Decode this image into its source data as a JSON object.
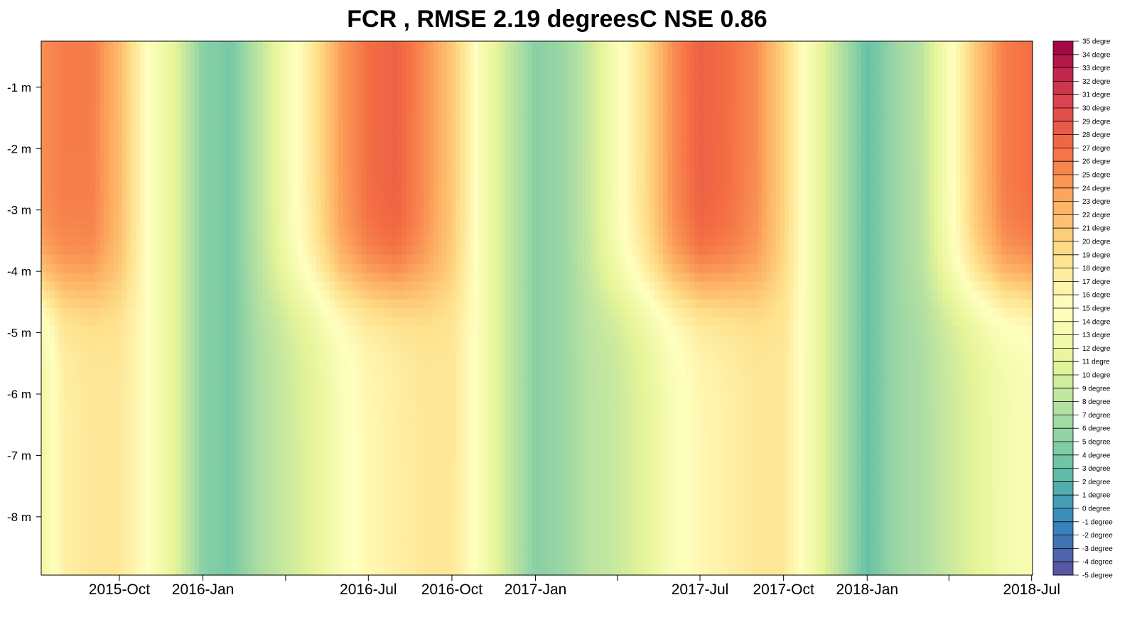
{
  "chart_data": {
    "type": "heatmap",
    "title": "FCR , RMSE 2.19 degreesC NSE 0.86",
    "xlabel": "",
    "ylabel": "",
    "x_ticks": [
      {
        "date": "2015-07-01",
        "label": ""
      },
      {
        "date": "2015-10-01",
        "label": "2015-Oct"
      },
      {
        "date": "2016-01-01",
        "label": "2016-Jan"
      },
      {
        "date": "2016-04-01",
        "label": ""
      },
      {
        "date": "2016-07-01",
        "label": "2016-Jul"
      },
      {
        "date": "2016-10-01",
        "label": "2016-Oct"
      },
      {
        "date": "2017-01-01",
        "label": "2017-Jan"
      },
      {
        "date": "2017-04-01",
        "label": ""
      },
      {
        "date": "2017-07-01",
        "label": "2017-Jul"
      },
      {
        "date": "2017-10-01",
        "label": "2017-Oct"
      },
      {
        "date": "2018-01-01",
        "label": "2018-Jan"
      },
      {
        "date": "2018-04-01",
        "label": ""
      },
      {
        "date": "2018-07-01",
        "label": "2018-Jul"
      }
    ],
    "xlim": [
      "2015-07-07",
      "2018-07-02"
    ],
    "y_ticks": [
      {
        "depth": -1,
        "label": "-1 m"
      },
      {
        "depth": -2,
        "label": "-2 m"
      },
      {
        "depth": -3,
        "label": "-3 m"
      },
      {
        "depth": -4,
        "label": "-4 m"
      },
      {
        "depth": -5,
        "label": "-5 m"
      },
      {
        "depth": -6,
        "label": "-6 m"
      },
      {
        "depth": -7,
        "label": "-7 m"
      },
      {
        "depth": -8,
        "label": "-8 m"
      }
    ],
    "ylim": [
      -8.95,
      -0.25
    ],
    "z_unit": "degreesC",
    "colorbar": {
      "min": -5,
      "max": 35,
      "step": 1,
      "labels": [
        "35 degre",
        "34 degre",
        "33 degre",
        "32 degre",
        "31 degre",
        "30 degre",
        "29 degre",
        "28 degre",
        "27 degre",
        "26 degre",
        "25 degre",
        "24 degre",
        "23 degre",
        "22 degre",
        "21 degre",
        "20 degre",
        "19 degre",
        "18 degre",
        "17 degre",
        "16 degre",
        "15 degre",
        "14 degre",
        "13 degre",
        "12 degre",
        "11 degre",
        "10 degre",
        "9 degree",
        "8 degree",
        "7 degree",
        "6 degree",
        "5 degree",
        "4 degree",
        "3 degree",
        "2 degree",
        "1 degree",
        "0 degree",
        "-1 degree",
        "-2 degree",
        "-3 degree",
        "-4 degree",
        "-5 degree"
      ],
      "palette": [
        "#5e4fa2",
        "#3288bd",
        "#66c2a5",
        "#abdda4",
        "#e6f598",
        "#ffffbf",
        "#fee08b",
        "#fdae61",
        "#f46d43",
        "#d53e4f",
        "#9e0142"
      ]
    },
    "series": [
      {
        "values": [
          {
            "date": "2015-07-07",
            "surface": 25,
            "bottom": 12
          },
          {
            "date": "2015-08-01",
            "surface": 26,
            "bottom": 17
          },
          {
            "date": "2015-09-01",
            "surface": 26,
            "bottom": 18
          },
          {
            "date": "2015-10-01",
            "surface": 22,
            "bottom": 18
          },
          {
            "date": "2015-11-01",
            "surface": 15,
            "bottom": 15
          },
          {
            "date": "2015-12-01",
            "surface": 11,
            "bottom": 11
          },
          {
            "date": "2016-01-01",
            "surface": 5,
            "bottom": 5
          },
          {
            "date": "2016-02-01",
            "surface": 4,
            "bottom": 4
          },
          {
            "date": "2016-03-01",
            "surface": 8,
            "bottom": 7
          },
          {
            "date": "2016-04-01",
            "surface": 13,
            "bottom": 9
          },
          {
            "date": "2016-05-01",
            "surface": 18,
            "bottom": 11
          },
          {
            "date": "2016-06-01",
            "surface": 24,
            "bottom": 14
          },
          {
            "date": "2016-07-01",
            "surface": 27,
            "bottom": 16
          },
          {
            "date": "2016-08-01",
            "surface": 28,
            "bottom": 17
          },
          {
            "date": "2016-09-01",
            "surface": 25,
            "bottom": 18
          },
          {
            "date": "2016-10-01",
            "surface": 21,
            "bottom": 18
          },
          {
            "date": "2016-11-01",
            "surface": 14,
            "bottom": 14
          },
          {
            "date": "2016-12-01",
            "surface": 9,
            "bottom": 9
          },
          {
            "date": "2017-01-01",
            "surface": 5,
            "bottom": 5
          },
          {
            "date": "2017-02-01",
            "surface": 6,
            "bottom": 6
          },
          {
            "date": "2017-03-01",
            "surface": 9,
            "bottom": 8
          },
          {
            "date": "2017-04-01",
            "surface": 14,
            "bottom": 9
          },
          {
            "date": "2017-05-01",
            "surface": 19,
            "bottom": 11
          },
          {
            "date": "2017-06-01",
            "surface": 25,
            "bottom": 14
          },
          {
            "date": "2017-07-01",
            "surface": 28,
            "bottom": 16
          },
          {
            "date": "2017-08-01",
            "surface": 27,
            "bottom": 17
          },
          {
            "date": "2017-09-01",
            "surface": 25,
            "bottom": 18
          },
          {
            "date": "2017-10-01",
            "surface": 20,
            "bottom": 18
          },
          {
            "date": "2017-11-01",
            "surface": 13,
            "bottom": 13
          },
          {
            "date": "2017-12-01",
            "surface": 8,
            "bottom": 8
          },
          {
            "date": "2018-01-01",
            "surface": 3,
            "bottom": 3
          },
          {
            "date": "2018-02-01",
            "surface": 6,
            "bottom": 6
          },
          {
            "date": "2018-03-01",
            "surface": 8,
            "bottom": 7
          },
          {
            "date": "2018-04-01",
            "surface": 14,
            "bottom": 9
          },
          {
            "date": "2018-05-01",
            "surface": 21,
            "bottom": 11
          },
          {
            "date": "2018-06-01",
            "surface": 26,
            "bottom": 13
          },
          {
            "date": "2018-07-02",
            "surface": 27,
            "bottom": 14
          }
        ]
      }
    ],
    "grid": false,
    "legend": "right colorbar"
  }
}
